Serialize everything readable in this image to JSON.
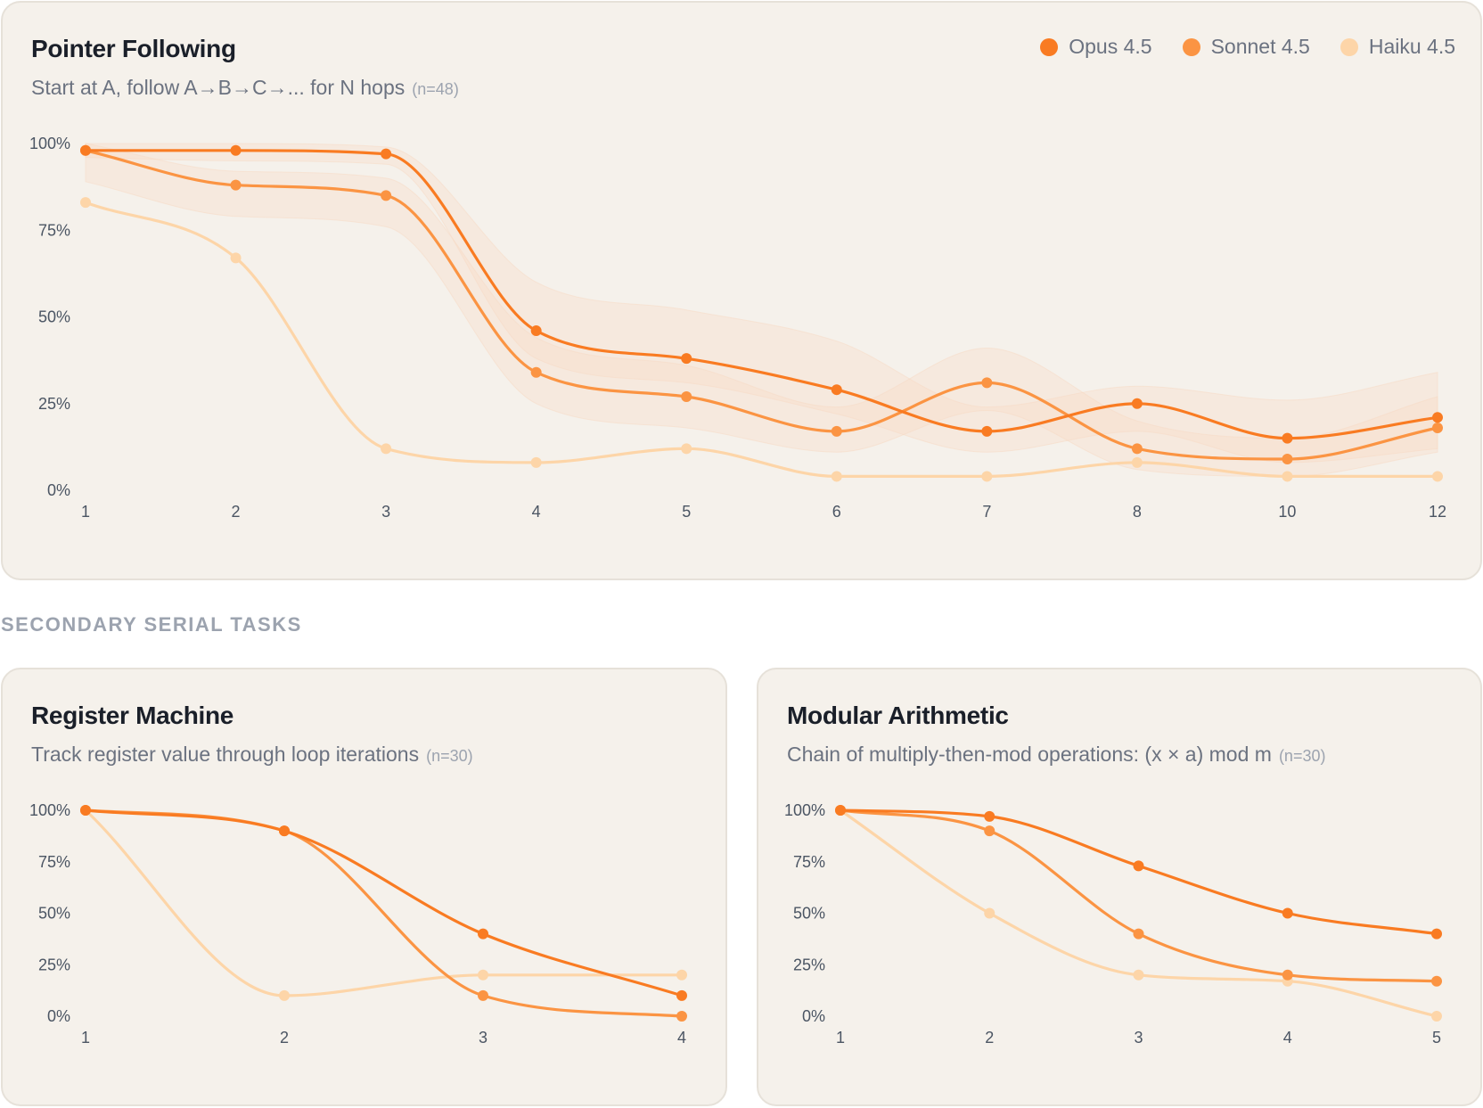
{
  "colors": {
    "opus": "#f97b22",
    "sonnet": "#fb9443",
    "haiku": "#fdd5a8",
    "band": "#f8d9c3"
  },
  "legend": [
    {
      "name": "Opus 4.5",
      "color": "#f97b22"
    },
    {
      "name": "Sonnet 4.5",
      "color": "#fb9443"
    },
    {
      "name": "Haiku 4.5",
      "color": "#fdd5a8"
    }
  ],
  "main": {
    "title": "Pointer Following",
    "subtitle": "Start at A, follow A→B→C→... for N hops",
    "n": "(n=48)"
  },
  "section_label": "SECONDARY SERIAL TASKS",
  "register": {
    "title": "Register Machine",
    "subtitle": "Track register value through loop iterations",
    "n": "(n=30)"
  },
  "modular": {
    "title": "Modular Arithmetic",
    "subtitle": "Chain of multiply-then-mod operations: (x × a) mod m",
    "n": "(n=30)"
  },
  "chart_data": [
    {
      "type": "line",
      "title": "Pointer Following",
      "xlabel": "",
      "ylabel": "",
      "categories": [
        "1",
        "2",
        "3",
        "4",
        "5",
        "6",
        "7",
        "8",
        "10",
        "12"
      ],
      "yticks": [
        "0%",
        "25%",
        "50%",
        "75%",
        "100%"
      ],
      "ylim": [
        0,
        100
      ],
      "series": [
        {
          "name": "Opus 4.5",
          "values": [
            98,
            98,
            97,
            46,
            38,
            29,
            17,
            25,
            15,
            21
          ],
          "band": [
            [
              96,
              100
            ],
            [
              95,
              100
            ],
            [
              94,
              99
            ],
            [
              38,
              60
            ],
            [
              31,
              52
            ],
            [
              22,
              43
            ],
            [
              11,
              24
            ],
            [
              17,
              30
            ],
            [
              8,
              26
            ],
            [
              12,
              34
            ]
          ]
        },
        {
          "name": "Sonnet 4.5",
          "values": [
            98,
            88,
            85,
            34,
            27,
            17,
            31,
            12,
            9,
            18
          ],
          "band": [
            [
              89,
              100
            ],
            [
              79,
              92
            ],
            [
              76,
              90
            ],
            [
              25,
              44
            ],
            [
              18,
              36
            ],
            [
              11,
              24
            ],
            [
              23,
              41
            ],
            [
              6,
              20
            ],
            [
              4,
              15
            ],
            [
              11,
              27
            ]
          ]
        },
        {
          "name": "Haiku 4.5",
          "values": [
            83,
            67,
            12,
            8,
            12,
            4,
            4,
            8,
            4,
            4
          ]
        }
      ]
    },
    {
      "type": "line",
      "title": "Register Machine",
      "xlabel": "",
      "ylabel": "",
      "categories": [
        "1",
        "2",
        "3",
        "4"
      ],
      "yticks": [
        "0%",
        "25%",
        "50%",
        "75%",
        "100%"
      ],
      "ylim": [
        0,
        100
      ],
      "series": [
        {
          "name": "Opus 4.5",
          "values": [
            100,
            90,
            40,
            10
          ]
        },
        {
          "name": "Sonnet 4.5",
          "values": [
            100,
            90,
            10,
            0
          ]
        },
        {
          "name": "Haiku 4.5",
          "values": [
            100,
            10,
            20,
            20
          ]
        }
      ]
    },
    {
      "type": "line",
      "title": "Modular Arithmetic",
      "xlabel": "",
      "ylabel": "",
      "categories": [
        "1",
        "2",
        "3",
        "4",
        "5"
      ],
      "yticks": [
        "0%",
        "25%",
        "50%",
        "75%",
        "100%"
      ],
      "ylim": [
        0,
        100
      ],
      "series": [
        {
          "name": "Opus 4.5",
          "values": [
            100,
            97,
            73,
            50,
            40
          ]
        },
        {
          "name": "Sonnet 4.5",
          "values": [
            100,
            90,
            40,
            20,
            17
          ]
        },
        {
          "name": "Haiku 4.5",
          "values": [
            100,
            50,
            20,
            17,
            0
          ]
        }
      ]
    }
  ]
}
